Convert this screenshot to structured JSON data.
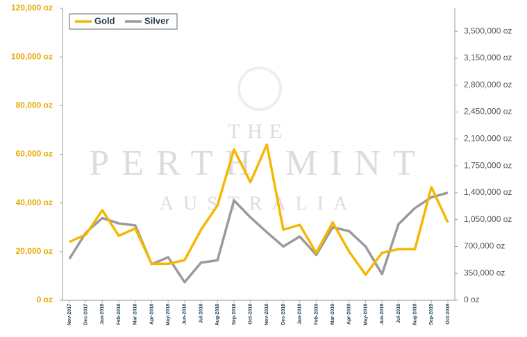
{
  "chart_data": {
    "type": "line",
    "watermark": [
      "THE",
      "PERTH MINT",
      "AUSTRALIA"
    ],
    "categories": [
      "Nov-2017",
      "Dec-2017",
      "Jan-2018",
      "Feb-2018",
      "Mar-2018",
      "Apr-2018",
      "May-2018",
      "Jun-2018",
      "Jul-2018",
      "Aug-2018",
      "Sep-2018",
      "Oct-2018",
      "Nov-2018",
      "Dec-2018",
      "Jan-2019",
      "Feb-2019",
      "Mar-2019",
      "Apr-2019",
      "May-2019",
      "Jun-2019",
      "Jul-2019",
      "Aug-2019",
      "Sep-2019",
      "Oct-2019"
    ],
    "series": [
      {
        "name": "Gold",
        "color": "#f5b800",
        "axis": "y",
        "values": [
          24000,
          27000,
          37000,
          26500,
          29500,
          15000,
          15000,
          16500,
          29000,
          39000,
          62000,
          48500,
          64000,
          29000,
          31000,
          19500,
          32000,
          20000,
          10500,
          19500,
          21000,
          21000,
          46500,
          32000
        ]
      },
      {
        "name": "Silver",
        "color": "#9a9a9a",
        "axis": "y2",
        "values": [
          540000,
          880000,
          1070000,
          1000000,
          975000,
          470000,
          560000,
          235000,
          490000,
          520000,
          1300000,
          1080000,
          885000,
          700000,
          830000,
          590000,
          950000,
          900000,
          700000,
          340000,
          990000,
          1200000,
          1340000,
          1400000
        ]
      }
    ],
    "ylim": [
      0,
      120000
    ],
    "yticks": [
      {
        "value": 0,
        "label": "0 oz"
      },
      {
        "value": 20000,
        "label": "20,000 oz"
      },
      {
        "value": 40000,
        "label": "40,000 oz"
      },
      {
        "value": 60000,
        "label": "60,000 oz"
      },
      {
        "value": 80000,
        "label": "80,000 oz"
      },
      {
        "value": 100000,
        "label": "100,000 oz"
      },
      {
        "value": 120000,
        "label": "120,000 oz"
      }
    ],
    "y2lim": [
      0,
      3800000
    ],
    "y2ticks": [
      {
        "value": 0,
        "label": "0 oz"
      },
      {
        "value": 350000,
        "label": "350,000 oz"
      },
      {
        "value": 700000,
        "label": "700,000 oz"
      },
      {
        "value": 1050000,
        "label": "1,050,000 oz"
      },
      {
        "value": 1400000,
        "label": "1,400,000 oz"
      },
      {
        "value": 1750000,
        "label": "1,750,000 oz"
      },
      {
        "value": 2100000,
        "label": "2,100,000 oz"
      },
      {
        "value": 2450000,
        "label": "2,450,000 oz"
      },
      {
        "value": 2800000,
        "label": "2,800,000 oz"
      },
      {
        "value": 3150000,
        "label": "3,150,000 oz"
      },
      {
        "value": 3500000,
        "label": "3,500,000 oz"
      }
    ],
    "legend": "top-left"
  }
}
